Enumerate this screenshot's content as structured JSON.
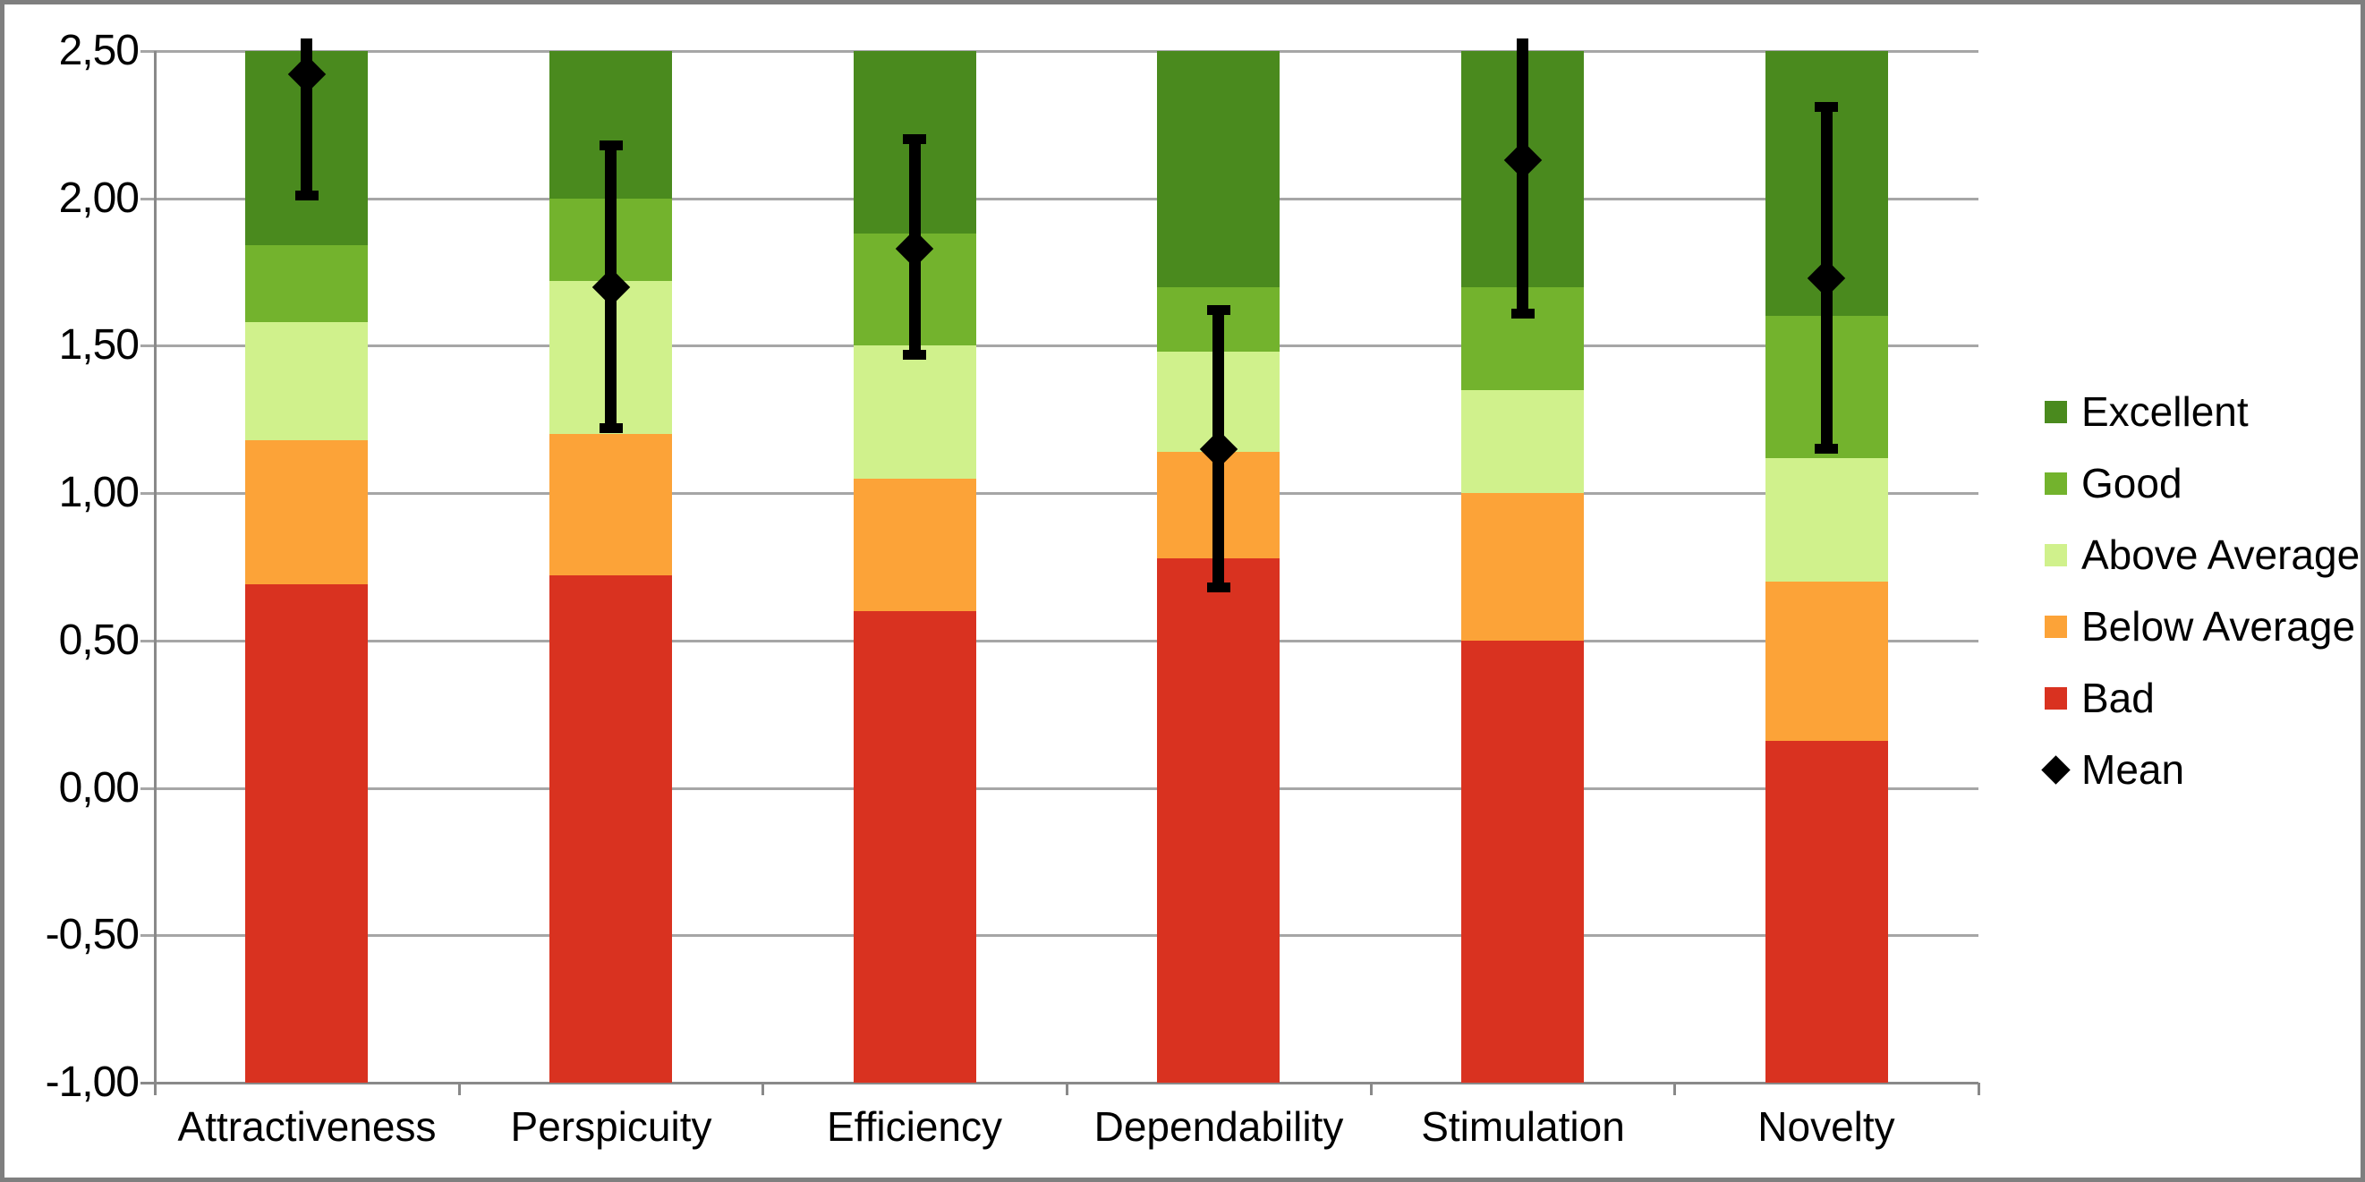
{
  "chart_data": {
    "type": "bar",
    "stacked": true,
    "title": "",
    "xlabel": "",
    "ylabel": "",
    "grid": true,
    "legend_position": "right",
    "decimal_separator": ",",
    "categories": [
      "Attractiveness",
      "Perspicuity",
      "Efficiency",
      "Dependability",
      "Stimulation",
      "Novelty"
    ],
    "y_axis": {
      "min": -1.0,
      "max": 2.5,
      "step": 0.5,
      "ticks": [
        {
          "value": 2.5,
          "label": "2,50"
        },
        {
          "value": 2.0,
          "label": "2,00"
        },
        {
          "value": 1.5,
          "label": "1,50"
        },
        {
          "value": 1.0,
          "label": "1,00"
        },
        {
          "value": 0.5,
          "label": "0,50"
        },
        {
          "value": 0.0,
          "label": "0,00"
        },
        {
          "value": -0.5,
          "label": "-0,50"
        },
        {
          "value": -1.0,
          "label": "-1,00"
        }
      ]
    },
    "series": [
      {
        "name": "Bad",
        "color": "#d93220",
        "base": -1.0,
        "to": [
          0.69,
          0.72,
          0.6,
          0.78,
          0.5,
          0.16
        ]
      },
      {
        "name": "Below Average",
        "color": "#fca338",
        "to": [
          1.18,
          1.2,
          1.05,
          1.14,
          1.0,
          0.7
        ]
      },
      {
        "name": "Above Average",
        "color": "#d0f18c",
        "to": [
          1.58,
          1.72,
          1.5,
          1.48,
          1.35,
          1.12
        ]
      },
      {
        "name": "Good",
        "color": "#73b32d",
        "to": [
          1.84,
          2.0,
          1.88,
          1.7,
          1.7,
          1.6
        ]
      },
      {
        "name": "Excellent",
        "color": "#4a8a1e",
        "to": [
          2.5,
          2.5,
          2.5,
          2.5,
          2.5,
          2.5
        ]
      }
    ],
    "mean_series": {
      "name": "Mean",
      "color": "#000000",
      "marker": "diamond",
      "values": [
        2.42,
        1.7,
        1.83,
        1.15,
        2.13,
        1.73
      ],
      "ci_low": [
        2.01,
        1.22,
        1.47,
        0.68,
        1.61,
        1.15
      ],
      "ci_high": [
        2.83,
        2.18,
        2.2,
        1.62,
        2.65,
        2.31
      ]
    },
    "legend": [
      {
        "label": "Excellent",
        "marker": "square",
        "color": "#4a8a1e"
      },
      {
        "label": "Good",
        "marker": "square",
        "color": "#73b32d"
      },
      {
        "label": "Above Average",
        "marker": "square",
        "color": "#d0f18c"
      },
      {
        "label": "Below Average",
        "marker": "square",
        "color": "#fca338"
      },
      {
        "label": "Bad",
        "marker": "square",
        "color": "#d93220"
      },
      {
        "label": "Mean",
        "marker": "diamond",
        "color": "#000000"
      }
    ],
    "colors": {
      "gridline": "#a6a6a6",
      "axis": "#898989",
      "frame_border": "#7f7f7f",
      "text": "#000000"
    }
  }
}
